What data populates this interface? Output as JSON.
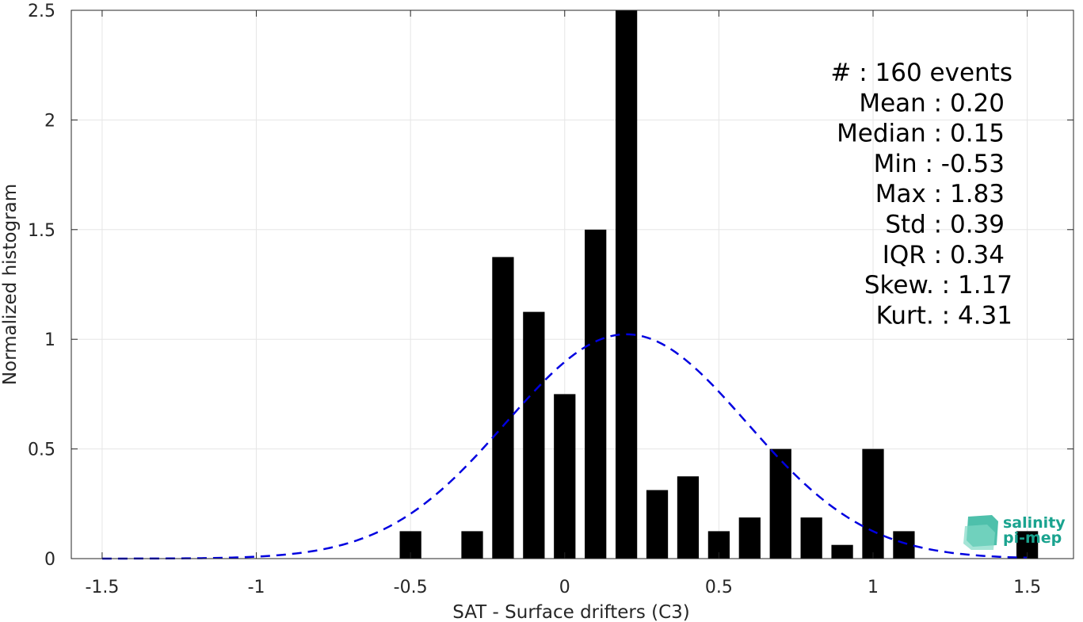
{
  "chart_data": {
    "type": "bar",
    "xlabel": "SAT - Surface drifters (C3)",
    "ylabel": "Normalized histogram",
    "xlim": [
      -1.6,
      1.65
    ],
    "ylim": [
      0,
      2.5
    ],
    "x_ticks": [
      -1.5,
      -1,
      -0.5,
      0,
      0.5,
      1,
      1.5
    ],
    "x_tick_labels": [
      "-1.5",
      "-1",
      "-0.5",
      "0",
      "0.5",
      "1",
      "1.5"
    ],
    "y_ticks": [
      0,
      0.5,
      1,
      1.5,
      2,
      2.5
    ],
    "y_tick_labels": [
      "0",
      "0.5",
      "1",
      "1.5",
      "2",
      "2.5"
    ],
    "grid": true,
    "bar_width": 0.07,
    "bars": [
      {
        "x": -0.5,
        "y": 0.125
      },
      {
        "x": -0.3,
        "y": 0.125
      },
      {
        "x": -0.2,
        "y": 1.375
      },
      {
        "x": -0.1,
        "y": 1.125
      },
      {
        "x": 0.0,
        "y": 0.75
      },
      {
        "x": 0.1,
        "y": 1.5
      },
      {
        "x": 0.2,
        "y": 2.5
      },
      {
        "x": 0.3,
        "y": 0.3125
      },
      {
        "x": 0.4,
        "y": 0.375
      },
      {
        "x": 0.5,
        "y": 0.125
      },
      {
        "x": 0.6,
        "y": 0.1875
      },
      {
        "x": 0.7,
        "y": 0.5
      },
      {
        "x": 0.8,
        "y": 0.1875
      },
      {
        "x": 0.9,
        "y": 0.0625
      },
      {
        "x": 1.0,
        "y": 0.5
      },
      {
        "x": 1.1,
        "y": 0.125
      },
      {
        "x": 1.5,
        "y": 0.125
      }
    ],
    "bar_color": "#000000",
    "fit_curve": {
      "style": "dashed",
      "color": "#0000e0",
      "mean": 0.2,
      "std": 0.39,
      "x_range": [
        -1.5,
        1.5
      ]
    },
    "stats": [
      {
        "label": "#  : 160 events"
      },
      {
        "label": "Mean : 0.20"
      },
      {
        "label": "Median : 0.15"
      },
      {
        "label": "Min : -0.53"
      },
      {
        "label": "Max : 1.83"
      },
      {
        "label": "Std : 0.39"
      },
      {
        "label": "IQR : 0.34"
      },
      {
        "label": "Skew. : 1.17"
      },
      {
        "label": "Kurt. : 4.31"
      }
    ]
  },
  "logo": {
    "line1": "salinity",
    "line2": "pi-mep"
  }
}
